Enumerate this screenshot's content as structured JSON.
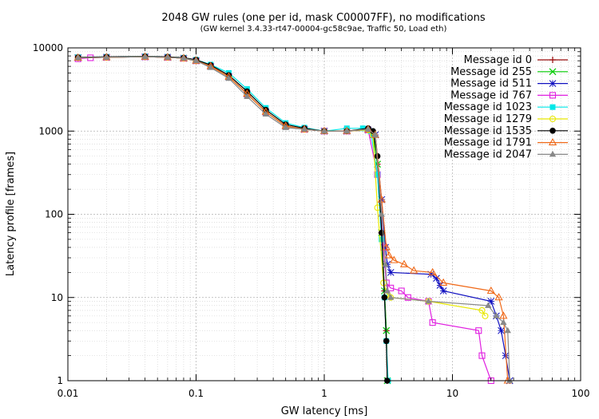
{
  "chart_data": {
    "type": "line",
    "title": "2048 GW rules (one per id, mask C00007FF), no modifications",
    "subtitle": "(GW kernel 3.4.33-rt47-00004-gc58c9ae, Traffic 50, Load eth)",
    "xlabel": "GW latency [ms]",
    "ylabel": "Latency profile [frames]",
    "xscale": "log",
    "yscale": "log",
    "xlim": [
      0.01,
      100
    ],
    "ylim": [
      1,
      10000
    ],
    "xticks": [
      "0.01",
      "0.1",
      "1",
      "10",
      "100"
    ],
    "yticks": [
      "1",
      "10",
      "100",
      "1000",
      "10000"
    ],
    "grid": true,
    "legend": "top-right",
    "series": [
      {
        "name": "Message id 0",
        "color": "#9b0e0e",
        "marker": "plus",
        "x": [
          0.012,
          0.02,
          0.04,
          0.06,
          0.08,
          0.1,
          0.13,
          0.18,
          0.25,
          0.35,
          0.5,
          0.7,
          1.0,
          1.5,
          2.2,
          2.4,
          2.6,
          2.8,
          2.95,
          3.05,
          3.1
        ],
        "y": [
          7600,
          7700,
          7800,
          7700,
          7500,
          7000,
          6000,
          4500,
          2800,
          1700,
          1150,
          1050,
          1000,
          1000,
          1030,
          900,
          400,
          60,
          12,
          4,
          1
        ]
      },
      {
        "name": "Message id 255",
        "color": "#00cc00",
        "marker": "x",
        "x": [
          0.012,
          0.02,
          0.04,
          0.06,
          0.08,
          0.1,
          0.13,
          0.18,
          0.25,
          0.35,
          0.5,
          0.7,
          1.0,
          1.5,
          2.2,
          2.4,
          2.6,
          2.8,
          2.95,
          3.05,
          3.1
        ],
        "y": [
          7600,
          7700,
          7800,
          7700,
          7500,
          7000,
          6000,
          4500,
          2800,
          1700,
          1150,
          1050,
          1000,
          1000,
          1030,
          900,
          400,
          60,
          12,
          4,
          1
        ]
      },
      {
        "name": "Message id 511",
        "color": "#1010c0",
        "marker": "asterisk",
        "x": [
          0.012,
          0.02,
          0.04,
          0.06,
          0.08,
          0.1,
          0.13,
          0.18,
          0.25,
          0.35,
          0.5,
          0.7,
          1.0,
          1.5,
          2.2,
          2.5,
          2.8,
          3.0,
          3.1,
          3.3,
          6.8,
          7.5,
          8.0,
          8.5,
          20,
          22,
          24,
          26,
          28
        ],
        "y": [
          7600,
          7700,
          7800,
          7700,
          7500,
          7000,
          6000,
          4500,
          2800,
          1700,
          1150,
          1050,
          1000,
          1000,
          1030,
          900,
          150,
          40,
          25,
          20,
          19,
          17,
          14,
          12,
          9,
          6,
          4,
          2,
          1
        ]
      },
      {
        "name": "Message id 767",
        "color": "#e020e0",
        "marker": "square",
        "x": [
          0.012,
          0.015,
          0.02,
          0.04,
          0.06,
          0.08,
          0.1,
          0.13,
          0.18,
          0.25,
          0.35,
          0.5,
          0.7,
          1.0,
          1.5,
          2.2,
          2.6,
          2.9,
          3.05,
          3.3,
          4.0,
          4.5,
          6.5,
          7.0,
          16,
          17,
          20
        ],
        "y": [
          7400,
          7600,
          7700,
          7800,
          7700,
          7500,
          7000,
          6000,
          4500,
          2800,
          1700,
          1150,
          1050,
          1000,
          1000,
          1030,
          300,
          40,
          15,
          13,
          12,
          10,
          9,
          5,
          4,
          2,
          1
        ]
      },
      {
        "name": "Message id 1023",
        "color": "#00e8e8",
        "marker": "square-filled",
        "x": [
          0.012,
          0.02,
          0.04,
          0.06,
          0.08,
          0.1,
          0.13,
          0.18,
          0.25,
          0.35,
          0.5,
          0.7,
          1.0,
          1.5,
          2.0,
          2.3,
          2.6,
          2.8,
          2.95,
          3.05,
          3.15
        ],
        "y": [
          7700,
          7800,
          7900,
          7800,
          7600,
          7200,
          6300,
          5000,
          3200,
          1900,
          1250,
          1100,
          1000,
          1080,
          1080,
          1000,
          300,
          50,
          10,
          3,
          1
        ]
      },
      {
        "name": "Message id 1279",
        "color": "#e8e800",
        "marker": "circle",
        "x": [
          0.012,
          0.02,
          0.04,
          0.06,
          0.08,
          0.1,
          0.13,
          0.18,
          0.25,
          0.35,
          0.5,
          0.7,
          1.0,
          1.5,
          2.2,
          2.4,
          2.6,
          2.9,
          3.1,
          3.3,
          6.5,
          17,
          18
        ],
        "y": [
          7600,
          7700,
          7800,
          7700,
          7500,
          7000,
          6000,
          4500,
          2800,
          1700,
          1150,
          1050,
          1000,
          1000,
          1030,
          900,
          120,
          15,
          11,
          10,
          9,
          7,
          6
        ]
      },
      {
        "name": "Message id 1535",
        "color": "#000000",
        "marker": "circle-filled",
        "x": [
          0.012,
          0.02,
          0.04,
          0.06,
          0.08,
          0.1,
          0.13,
          0.18,
          0.25,
          0.35,
          0.5,
          0.7,
          1.0,
          1.5,
          2.2,
          2.4,
          2.6,
          2.8,
          2.95,
          3.05,
          3.1
        ],
        "y": [
          7700,
          7800,
          7900,
          7800,
          7600,
          7200,
          6200,
          4700,
          3000,
          1800,
          1200,
          1080,
          1000,
          1000,
          1080,
          1000,
          500,
          60,
          10,
          3,
          1
        ]
      },
      {
        "name": "Message id 1791",
        "color": "#f06a1a",
        "marker": "triangle",
        "x": [
          0.012,
          0.02,
          0.04,
          0.06,
          0.08,
          0.1,
          0.13,
          0.18,
          0.25,
          0.35,
          0.5,
          0.7,
          1.0,
          1.5,
          2.2,
          2.5,
          2.8,
          3.05,
          3.2,
          3.5,
          4.2,
          5.0,
          7.0,
          8.5,
          20,
          23,
          25,
          27
        ],
        "y": [
          7600,
          7700,
          7800,
          7700,
          7500,
          7000,
          6000,
          4500,
          2800,
          1700,
          1150,
          1050,
          1000,
          1000,
          1050,
          900,
          150,
          40,
          32,
          28,
          25,
          21,
          20,
          15,
          12,
          10,
          6,
          1
        ]
      },
      {
        "name": "Message id 2047",
        "color": "#888888",
        "marker": "triangle-filled",
        "x": [
          0.012,
          0.02,
          0.04,
          0.06,
          0.08,
          0.1,
          0.13,
          0.18,
          0.25,
          0.35,
          0.5,
          0.7,
          1.0,
          1.5,
          2.2,
          2.5,
          2.8,
          3.0,
          3.1,
          3.3,
          6.5,
          19,
          22,
          25,
          27,
          28
        ],
        "y": [
          7600,
          7700,
          7800,
          7700,
          7500,
          7000,
          5800,
          4300,
          2600,
          1600,
          1100,
          1050,
          1000,
          1000,
          1050,
          900,
          100,
          25,
          12,
          10,
          9,
          8,
          6,
          5,
          4,
          1
        ]
      }
    ]
  }
}
